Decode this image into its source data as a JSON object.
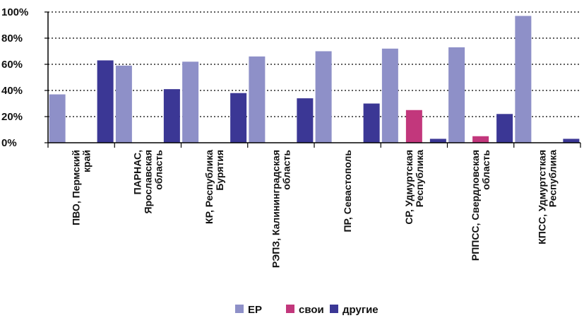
{
  "chart_data": {
    "type": "bar",
    "title": "",
    "xlabel": "",
    "ylabel": "",
    "ylim": [
      0,
      100
    ],
    "y_ticks": [
      "0%",
      "20%",
      "40%",
      "60%",
      "80%",
      "100%"
    ],
    "grid": "horizontal dotted",
    "legend_position": "bottom",
    "categories": [
      [
        "ПВО, Пермский",
        "край"
      ],
      [
        "ПАРНАС,",
        "Ярославская",
        "область"
      ],
      [
        "КР, Республика",
        "Бурятия"
      ],
      [
        "РЭПЗ, Калининградская",
        "область"
      ],
      [
        "ПР, Севастополь"
      ],
      [
        "СР, Удмуртская",
        "Республика"
      ],
      [
        "РППСС, Свердловская",
        "область"
      ],
      [
        "КПСС, Удмуртсткая",
        "Республика"
      ]
    ],
    "series": [
      {
        "name": "ЕР",
        "color": "#8e90c8",
        "values": [
          37,
          59,
          62,
          66,
          70,
          72,
          73,
          97
        ]
      },
      {
        "name": "свои",
        "color": "#c2377c",
        "values": [
          0,
          0,
          0,
          0,
          0,
          25,
          5,
          0
        ]
      },
      {
        "name": "другие",
        "color": "#3b3795",
        "values": [
          63,
          41,
          38,
          34,
          30,
          3,
          22,
          3
        ]
      }
    ]
  }
}
